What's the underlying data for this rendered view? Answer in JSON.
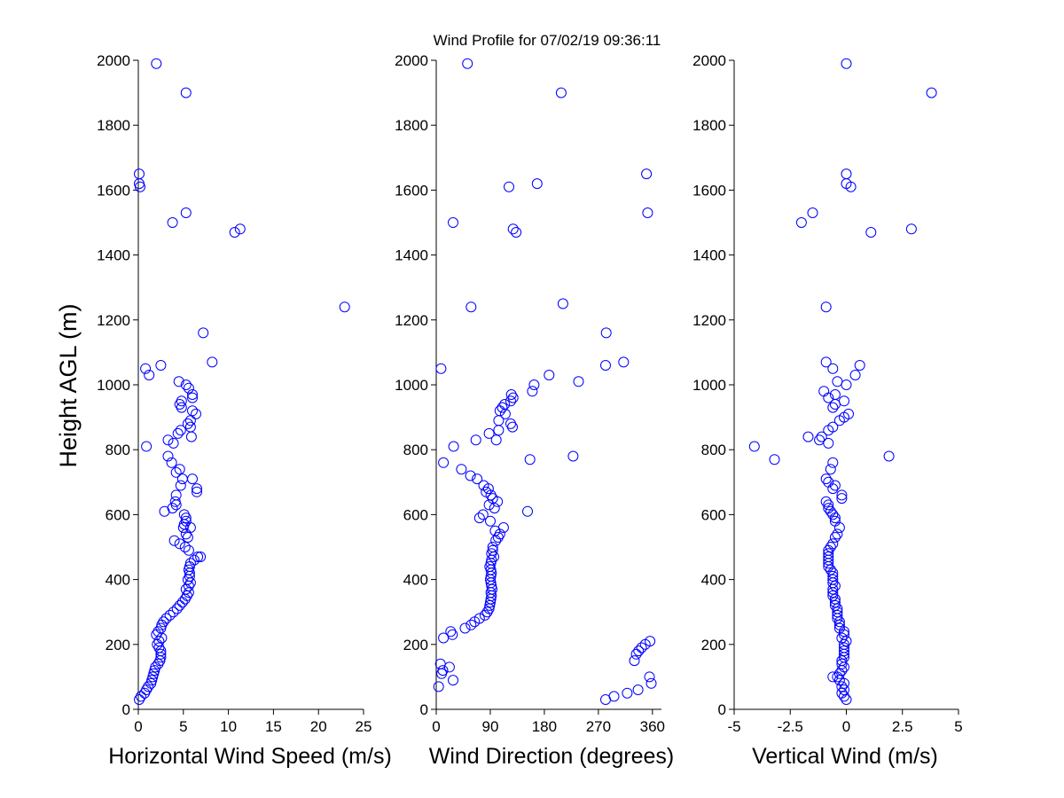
{
  "chart_data": {
    "title": "Wind Profile for  07/02/19 09:36:11",
    "ylabel": "Height AGL (m)",
    "ylim": [
      0,
      2000
    ],
    "yticks": [
      0,
      200,
      400,
      600,
      800,
      1000,
      1200,
      1400,
      1600,
      1800,
      2000
    ],
    "marker_color": "#0000ff",
    "panels": [
      {
        "type": "scatter",
        "xlabel": "Horizontal Wind Speed (m/s)",
        "xlim": [
          0,
          25
        ],
        "xticks": [
          "0",
          "5",
          "10",
          "15",
          "20",
          "25"
        ],
        "xtick_values": [
          0,
          5,
          10,
          15,
          20,
          25
        ],
        "points": [
          [
            2.0,
            1990
          ],
          [
            5.3,
            1900
          ],
          [
            0.1,
            1650
          ],
          [
            0.1,
            1620
          ],
          [
            0.2,
            1610
          ],
          [
            5.3,
            1530
          ],
          [
            3.8,
            1500
          ],
          [
            11.3,
            1480
          ],
          [
            10.7,
            1470
          ],
          [
            22.9,
            1240
          ],
          [
            7.2,
            1160
          ],
          [
            8.2,
            1070
          ],
          [
            2.5,
            1060
          ],
          [
            0.8,
            1050
          ],
          [
            1.2,
            1030
          ],
          [
            4.5,
            1010
          ],
          [
            5.3,
            1000
          ],
          [
            5.6,
            990
          ],
          [
            6.0,
            970
          ],
          [
            6.0,
            960
          ],
          [
            4.8,
            950
          ],
          [
            4.6,
            940
          ],
          [
            4.8,
            930
          ],
          [
            6.0,
            920
          ],
          [
            6.4,
            910
          ],
          [
            5.8,
            890
          ],
          [
            5.5,
            880
          ],
          [
            5.8,
            870
          ],
          [
            4.7,
            860
          ],
          [
            4.4,
            850
          ],
          [
            5.9,
            840
          ],
          [
            3.3,
            830
          ],
          [
            3.9,
            820
          ],
          [
            0.9,
            810
          ],
          [
            3.3,
            780
          ],
          [
            3.7,
            760
          ],
          [
            4.6,
            740
          ],
          [
            4.2,
            730
          ],
          [
            4.9,
            710
          ],
          [
            6.0,
            710
          ],
          [
            4.7,
            690
          ],
          [
            6.5,
            680
          ],
          [
            6.5,
            670
          ],
          [
            4.2,
            660
          ],
          [
            4.1,
            640
          ],
          [
            4.2,
            630
          ],
          [
            3.8,
            620
          ],
          [
            2.9,
            610
          ],
          [
            5.1,
            600
          ],
          [
            5.3,
            590
          ],
          [
            5.3,
            580
          ],
          [
            5.1,
            570
          ],
          [
            5.0,
            560
          ],
          [
            5.8,
            560
          ],
          [
            5.3,
            540
          ],
          [
            5.5,
            530
          ],
          [
            4.0,
            520
          ],
          [
            4.6,
            510
          ],
          [
            5.2,
            500
          ],
          [
            5.6,
            490
          ],
          [
            6.6,
            470
          ],
          [
            6.9,
            470
          ],
          [
            6.2,
            460
          ],
          [
            5.8,
            450
          ],
          [
            5.7,
            440
          ],
          [
            5.6,
            430
          ],
          [
            5.7,
            420
          ],
          [
            5.7,
            410
          ],
          [
            5.5,
            400
          ],
          [
            5.8,
            390
          ],
          [
            5.6,
            380
          ],
          [
            5.3,
            370
          ],
          [
            5.6,
            360
          ],
          [
            5.4,
            350
          ],
          [
            5.2,
            340
          ],
          [
            4.9,
            330
          ],
          [
            4.6,
            320
          ],
          [
            4.3,
            310
          ],
          [
            3.9,
            300
          ],
          [
            3.5,
            290
          ],
          [
            3.1,
            280
          ],
          [
            2.8,
            270
          ],
          [
            2.6,
            260
          ],
          [
            2.5,
            250
          ],
          [
            2.2,
            240
          ],
          [
            2.0,
            230
          ],
          [
            2.6,
            220
          ],
          [
            2.3,
            210
          ],
          [
            2.1,
            200
          ],
          [
            2.3,
            190
          ],
          [
            2.5,
            180
          ],
          [
            2.5,
            170
          ],
          [
            2.5,
            160
          ],
          [
            2.4,
            150
          ],
          [
            2.2,
            140
          ],
          [
            1.9,
            130
          ],
          [
            1.8,
            120
          ],
          [
            1.7,
            110
          ],
          [
            1.6,
            100
          ],
          [
            1.5,
            90
          ],
          [
            1.4,
            80
          ],
          [
            1.1,
            70
          ],
          [
            0.9,
            60
          ],
          [
            0.7,
            50
          ],
          [
            0.3,
            40
          ],
          [
            0.1,
            30
          ]
        ]
      },
      {
        "type": "scatter",
        "xlabel": "Wind Direction (degrees)",
        "xlim": [
          0,
          375
        ],
        "xticks": [
          "0",
          "90",
          "180",
          "270",
          "360"
        ],
        "xtick_values": [
          0,
          90,
          180,
          270,
          360
        ],
        "points": [
          [
            52,
            1990
          ],
          [
            208,
            1900
          ],
          [
            350,
            1650
          ],
          [
            168,
            1620
          ],
          [
            121,
            1610
          ],
          [
            352,
            1530
          ],
          [
            28,
            1500
          ],
          [
            128,
            1480
          ],
          [
            133,
            1470
          ],
          [
            58,
            1240
          ],
          [
            211,
            1250
          ],
          [
            283,
            1160
          ],
          [
            282,
            1060
          ],
          [
            312,
            1070
          ],
          [
            8,
            1050
          ],
          [
            188,
            1030
          ],
          [
            237,
            1010
          ],
          [
            163,
            1000
          ],
          [
            160,
            980
          ],
          [
            125,
            970
          ],
          [
            128,
            960
          ],
          [
            124,
            950
          ],
          [
            114,
            940
          ],
          [
            110,
            930
          ],
          [
            106,
            920
          ],
          [
            115,
            910
          ],
          [
            104,
            890
          ],
          [
            124,
            880
          ],
          [
            127,
            870
          ],
          [
            104,
            860
          ],
          [
            88,
            850
          ],
          [
            100,
            830
          ],
          [
            66,
            830
          ],
          [
            29,
            810
          ],
          [
            228,
            780
          ],
          [
            156,
            770
          ],
          [
            12,
            760
          ],
          [
            42,
            740
          ],
          [
            57,
            720
          ],
          [
            68,
            710
          ],
          [
            79,
            690
          ],
          [
            87,
            680
          ],
          [
            83,
            670
          ],
          [
            91,
            660
          ],
          [
            94,
            650
          ],
          [
            102,
            640
          ],
          [
            88,
            630
          ],
          [
            97,
            620
          ],
          [
            152,
            610
          ],
          [
            78,
            600
          ],
          [
            72,
            590
          ],
          [
            90,
            580
          ],
          [
            112,
            560
          ],
          [
            98,
            550
          ],
          [
            106,
            540
          ],
          [
            103,
            530
          ],
          [
            99,
            520
          ],
          [
            94,
            500
          ],
          [
            94,
            490
          ],
          [
            92,
            480
          ],
          [
            96,
            470
          ],
          [
            92,
            460
          ],
          [
            91,
            450
          ],
          [
            89,
            440
          ],
          [
            91,
            430
          ],
          [
            92,
            420
          ],
          [
            91,
            410
          ],
          [
            90,
            400
          ],
          [
            91,
            390
          ],
          [
            92,
            380
          ],
          [
            93,
            370
          ],
          [
            91,
            360
          ],
          [
            92,
            350
          ],
          [
            91,
            340
          ],
          [
            90,
            330
          ],
          [
            89,
            320
          ],
          [
            88,
            310
          ],
          [
            85,
            300
          ],
          [
            81,
            290
          ],
          [
            72,
            280
          ],
          [
            64,
            270
          ],
          [
            58,
            260
          ],
          [
            48,
            250
          ],
          [
            24,
            240
          ],
          [
            27,
            230
          ],
          [
            12,
            220
          ],
          [
            356,
            210
          ],
          [
            348,
            200
          ],
          [
            342,
            190
          ],
          [
            337,
            180
          ],
          [
            333,
            170
          ],
          [
            330,
            150
          ],
          [
            7,
            140
          ],
          [
            22,
            130
          ],
          [
            11,
            120
          ],
          [
            9,
            110
          ],
          [
            28,
            90
          ],
          [
            355,
            100
          ],
          [
            358,
            80
          ],
          [
            4,
            70
          ],
          [
            336,
            60
          ],
          [
            318,
            50
          ],
          [
            296,
            40
          ],
          [
            282,
            30
          ]
        ]
      },
      {
        "type": "scatter",
        "xlabel": "Vertical Wind (m/s)",
        "xlim": [
          -5,
          5
        ],
        "xticks": [
          "-5",
          "-2.5",
          "0",
          "2.5",
          "5"
        ],
        "xtick_values": [
          -5,
          -2.5,
          0,
          2.5,
          5
        ],
        "points": [
          [
            0.0,
            1990
          ],
          [
            3.8,
            1900
          ],
          [
            0.0,
            1650
          ],
          [
            0.0,
            1620
          ],
          [
            0.2,
            1610
          ],
          [
            -1.5,
            1530
          ],
          [
            -2.0,
            1500
          ],
          [
            2.9,
            1480
          ],
          [
            1.1,
            1470
          ],
          [
            -0.9,
            1240
          ],
          [
            -0.9,
            1070
          ],
          [
            0.6,
            1060
          ],
          [
            -0.6,
            1050
          ],
          [
            0.4,
            1030
          ],
          [
            -0.4,
            1010
          ],
          [
            0.0,
            1000
          ],
          [
            -1.0,
            980
          ],
          [
            -0.5,
            970
          ],
          [
            -0.8,
            960
          ],
          [
            -0.1,
            950
          ],
          [
            -0.5,
            940
          ],
          [
            -0.6,
            930
          ],
          [
            0.1,
            910
          ],
          [
            -0.1,
            900
          ],
          [
            -0.3,
            890
          ],
          [
            -0.6,
            870
          ],
          [
            -0.8,
            860
          ],
          [
            -1.1,
            840
          ],
          [
            -1.7,
            840
          ],
          [
            -1.2,
            830
          ],
          [
            -0.8,
            820
          ],
          [
            -4.1,
            810
          ],
          [
            -3.2,
            770
          ],
          [
            1.9,
            780
          ],
          [
            -0.6,
            760
          ],
          [
            -0.7,
            740
          ],
          [
            -0.9,
            710
          ],
          [
            -0.8,
            700
          ],
          [
            -0.5,
            690
          ],
          [
            -0.6,
            680
          ],
          [
            -0.2,
            660
          ],
          [
            -0.2,
            650
          ],
          [
            -0.9,
            640
          ],
          [
            -0.8,
            630
          ],
          [
            -0.8,
            620
          ],
          [
            -0.7,
            610
          ],
          [
            -0.6,
            600
          ],
          [
            -0.5,
            590
          ],
          [
            -0.5,
            580
          ],
          [
            -0.3,
            560
          ],
          [
            -0.4,
            540
          ],
          [
            -0.5,
            530
          ],
          [
            -0.6,
            510
          ],
          [
            -0.7,
            500
          ],
          [
            -0.8,
            490
          ],
          [
            -0.8,
            480
          ],
          [
            -0.8,
            470
          ],
          [
            -0.8,
            460
          ],
          [
            -0.8,
            450
          ],
          [
            -0.8,
            440
          ],
          [
            -0.7,
            430
          ],
          [
            -0.6,
            420
          ],
          [
            -0.6,
            410
          ],
          [
            -0.6,
            400
          ],
          [
            -0.6,
            390
          ],
          [
            -0.5,
            380
          ],
          [
            -0.6,
            370
          ],
          [
            -0.6,
            360
          ],
          [
            -0.6,
            350
          ],
          [
            -0.5,
            340
          ],
          [
            -0.5,
            330
          ],
          [
            -0.5,
            320
          ],
          [
            -0.4,
            310
          ],
          [
            -0.4,
            300
          ],
          [
            -0.4,
            290
          ],
          [
            -0.4,
            280
          ],
          [
            -0.3,
            270
          ],
          [
            -0.3,
            260
          ],
          [
            -0.3,
            250
          ],
          [
            -0.1,
            240
          ],
          [
            -0.1,
            230
          ],
          [
            -0.2,
            220
          ],
          [
            0.0,
            210
          ],
          [
            -0.1,
            200
          ],
          [
            -0.1,
            190
          ],
          [
            -0.1,
            180
          ],
          [
            -0.1,
            170
          ],
          [
            -0.1,
            160
          ],
          [
            -0.2,
            150
          ],
          [
            -0.2,
            140
          ],
          [
            -0.1,
            130
          ],
          [
            -0.2,
            120
          ],
          [
            -0.3,
            110
          ],
          [
            -0.4,
            100
          ],
          [
            -0.6,
            100
          ],
          [
            -0.3,
            90
          ],
          [
            -0.1,
            80
          ],
          [
            -0.2,
            70
          ],
          [
            -0.1,
            60
          ],
          [
            -0.2,
            50
          ],
          [
            -0.1,
            40
          ],
          [
            0.0,
            30
          ]
        ]
      }
    ]
  }
}
